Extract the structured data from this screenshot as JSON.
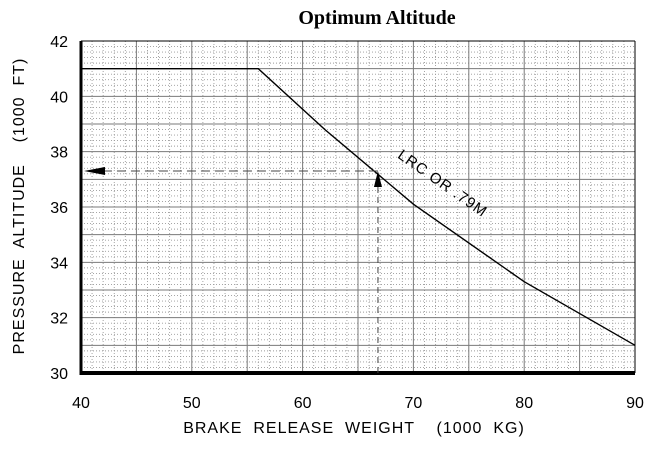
{
  "chart_data": {
    "type": "line",
    "title": "Optimum Altitude",
    "xlabel": "BRAKE  RELEASE  WEIGHT    (1000  KG)",
    "ylabel": "PRESSURE  ALTITUDE    (1000  FT)",
    "xlim": [
      40,
      90
    ],
    "ylim": [
      30,
      42
    ],
    "x_ticks": [
      40,
      50,
      60,
      70,
      80,
      90
    ],
    "y_ticks": [
      30,
      32,
      34,
      36,
      38,
      40,
      42
    ],
    "x_tick_labels": [
      "40",
      "50",
      "60",
      "70",
      "80",
      "90"
    ],
    "y_tick_labels": [
      "30",
      "32",
      "34",
      "36",
      "38",
      "40",
      "42"
    ],
    "grid": true,
    "series": [
      {
        "name": "LRC OR .79M",
        "x": [
          40,
          56,
          62,
          70,
          80,
          90
        ],
        "y": [
          41.0,
          41.0,
          38.8,
          36.1,
          33.3,
          31.0
        ]
      }
    ],
    "annotation": {
      "label": "LRC  OR  .79M",
      "example_weight": 66.8,
      "example_altitude": 37.3
    }
  }
}
